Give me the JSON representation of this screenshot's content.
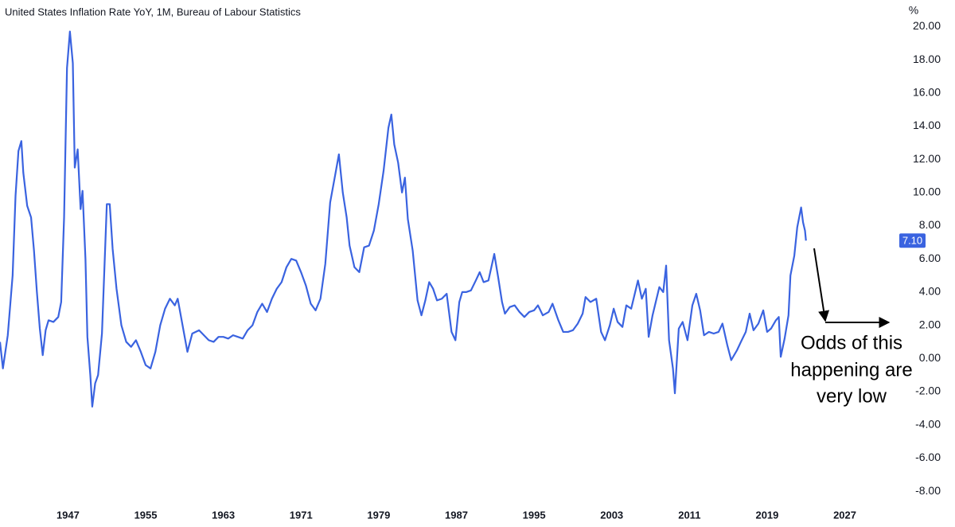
{
  "chart_data": {
    "type": "line",
    "title": "United States Inflation Rate YoY, 1M, Bureau of Labour Statistics",
    "y_unit": "%",
    "annotation": [
      "Odds of this",
      "happening are",
      "very low"
    ],
    "xlim": [
      1940,
      2032.2
    ],
    "xticks": [
      1947,
      1955,
      1963,
      1971,
      1979,
      1987,
      1995,
      2003,
      2011,
      2019,
      2027
    ],
    "ylim": [
      -9.1,
      21.6
    ],
    "yticks": [
      {
        "value": 20,
        "label": "20.00"
      },
      {
        "value": 18,
        "label": "18.00"
      },
      {
        "value": 16,
        "label": "16.00"
      },
      {
        "value": 14,
        "label": "14.00"
      },
      {
        "value": 12,
        "label": "12.00"
      },
      {
        "value": 10,
        "label": "10.00"
      },
      {
        "value": 8,
        "label": "8.00"
      },
      {
        "value": 6,
        "label": "6.00"
      },
      {
        "value": 4,
        "label": "4.00"
      },
      {
        "value": 2,
        "label": "2.00"
      },
      {
        "value": 0,
        "label": "0.00"
      },
      {
        "value": -2,
        "label": "-2.00"
      },
      {
        "value": -4,
        "label": "-4.00"
      },
      {
        "value": -6,
        "label": "-6.00"
      },
      {
        "value": -8,
        "label": "-8.00"
      }
    ],
    "grid": false,
    "price_label": {
      "value": 7.1,
      "label": "7.10"
    },
    "x": [
      1940.0,
      1940.3,
      1940.8,
      1941.3,
      1941.6,
      1941.9,
      1942.2,
      1942.4,
      1942.8,
      1943.2,
      1943.5,
      1943.8,
      1944.1,
      1944.4,
      1944.7,
      1945.0,
      1945.5,
      1946.0,
      1946.3,
      1946.6,
      1946.9,
      1947.2,
      1947.5,
      1947.7,
      1948.0,
      1948.3,
      1948.5,
      1948.8,
      1949.0,
      1949.3,
      1949.5,
      1949.8,
      1950.1,
      1950.5,
      1951.0,
      1951.3,
      1951.6,
      1952.0,
      1952.5,
      1953.0,
      1953.5,
      1954.0,
      1954.5,
      1955.0,
      1955.5,
      1956.0,
      1956.5,
      1957.0,
      1957.5,
      1958.0,
      1958.3,
      1958.8,
      1959.3,
      1959.8,
      1960.5,
      1961.0,
      1961.5,
      1962.0,
      1962.5,
      1963.0,
      1963.5,
      1964.0,
      1964.5,
      1965.0,
      1965.5,
      1966.0,
      1966.5,
      1967.0,
      1967.5,
      1968.0,
      1968.5,
      1969.0,
      1969.5,
      1970.0,
      1970.5,
      1971.0,
      1971.5,
      1972.0,
      1972.5,
      1973.0,
      1973.5,
      1974.0,
      1974.5,
      1974.9,
      1975.3,
      1975.7,
      1976.0,
      1976.5,
      1977.0,
      1977.5,
      1978.0,
      1978.5,
      1979.0,
      1979.5,
      1980.0,
      1980.3,
      1980.6,
      1981.0,
      1981.4,
      1981.7,
      1982.0,
      1982.5,
      1983.0,
      1983.4,
      1983.8,
      1984.2,
      1984.6,
      1985.0,
      1985.5,
      1986.0,
      1986.5,
      1986.9,
      1987.3,
      1987.6,
      1988.0,
      1988.5,
      1989.0,
      1989.4,
      1989.8,
      1990.3,
      1990.9,
      1991.3,
      1991.7,
      1992.0,
      1992.5,
      1993.0,
      1993.5,
      1994.0,
      1994.5,
      1995.0,
      1995.4,
      1995.9,
      1996.5,
      1996.9,
      1997.5,
      1998.0,
      1998.5,
      1999.0,
      1999.5,
      2000.0,
      2000.3,
      2000.8,
      2001.4,
      2001.9,
      2002.3,
      2002.8,
      2003.2,
      2003.6,
      2004.1,
      2004.5,
      2005.0,
      2005.7,
      2006.1,
      2006.5,
      2006.8,
      2007.2,
      2007.9,
      2008.3,
      2008.6,
      2008.9,
      2009.3,
      2009.5,
      2009.9,
      2010.3,
      2010.8,
      2011.3,
      2011.7,
      2012.1,
      2012.5,
      2013.0,
      2013.5,
      2014.0,
      2014.4,
      2014.9,
      2015.3,
      2015.9,
      2016.3,
      2016.8,
      2017.2,
      2017.6,
      2018.1,
      2018.6,
      2019.0,
      2019.4,
      2019.9,
      2020.2,
      2020.4,
      2020.8,
      2021.2,
      2021.4,
      2021.8,
      2022.1,
      2022.5,
      2022.7,
      2022.9,
      2023.0
    ],
    "series": [
      {
        "name": "United States Inflation Rate YoY",
        "color": "#3a63e0",
        "values": [
          1.0,
          -0.6,
          1.4,
          5,
          9.8,
          12.5,
          13.1,
          11.2,
          9.2,
          8.5,
          6.5,
          4.0,
          1.8,
          0.2,
          1.7,
          2.3,
          2.2,
          2.5,
          3.4,
          8.5,
          17.5,
          19.7,
          17.8,
          11.5,
          12.6,
          9.0,
          10.1,
          6.0,
          1.3,
          -1.0,
          -2.9,
          -1.5,
          -1.0,
          1.5,
          9.3,
          9.3,
          6.6,
          4.2,
          2.0,
          1.0,
          0.7,
          1.1,
          0.4,
          -0.4,
          -0.6,
          0.4,
          2.0,
          3.0,
          3.6,
          3.2,
          3.6,
          2.0,
          0.4,
          1.5,
          1.7,
          1.4,
          1.1,
          1.0,
          1.3,
          1.3,
          1.2,
          1.4,
          1.3,
          1.2,
          1.7,
          2.0,
          2.8,
          3.3,
          2.8,
          3.6,
          4.2,
          4.6,
          5.5,
          6.0,
          5.9,
          5.2,
          4.4,
          3.3,
          2.9,
          3.6,
          5.7,
          9.4,
          11.0,
          12.3,
          10.0,
          8.5,
          6.8,
          5.5,
          5.2,
          6.7,
          6.8,
          7.7,
          9.3,
          11.3,
          13.9,
          14.7,
          12.9,
          11.8,
          10.0,
          10.9,
          8.4,
          6.5,
          3.5,
          2.6,
          3.5,
          4.6,
          4.2,
          3.5,
          3.6,
          3.9,
          1.6,
          1.1,
          3.4,
          4.0,
          4.0,
          4.1,
          4.7,
          5.2,
          4.6,
          4.7,
          6.3,
          4.9,
          3.4,
          2.7,
          3.1,
          3.2,
          2.8,
          2.5,
          2.8,
          2.9,
          3.2,
          2.6,
          2.8,
          3.3,
          2.3,
          1.6,
          1.6,
          1.7,
          2.1,
          2.7,
          3.7,
          3.4,
          3.6,
          1.6,
          1.1,
          2.0,
          3.0,
          2.2,
          1.9,
          3.2,
          3.0,
          4.7,
          3.6,
          4.2,
          1.3,
          2.6,
          4.3,
          4.0,
          5.6,
          1.1,
          -0.6,
          -2.1,
          1.8,
          2.2,
          1.1,
          3.2,
          3.9,
          2.9,
          1.4,
          1.6,
          1.5,
          1.6,
          2.1,
          0.8,
          -0.1,
          0.5,
          1.0,
          1.6,
          2.7,
          1.7,
          2.1,
          2.9,
          1.6,
          1.8,
          2.3,
          2.5,
          0.1,
          1.2,
          2.6,
          5.0,
          6.2,
          7.9,
          9.1,
          8.2,
          7.7,
          7.1
        ]
      }
    ]
  }
}
